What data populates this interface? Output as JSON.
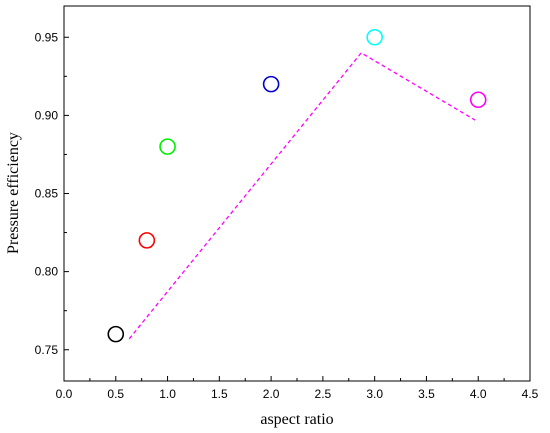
{
  "chart_data": {
    "type": "scatter",
    "title": "",
    "xlabel": "aspect ratio",
    "ylabel": "Pressure efficiency",
    "xlim": [
      0.0,
      4.5
    ],
    "ylim": [
      0.73,
      0.97
    ],
    "x_ticks": [
      "0.0",
      "0.5",
      "1.0",
      "1.5",
      "2.0",
      "2.5",
      "3.0",
      "3.5",
      "4.0",
      "4.5"
    ],
    "y_ticks": [
      "0.75",
      "0.80",
      "0.85",
      "0.90",
      "0.95"
    ],
    "grid": false,
    "legend": "none",
    "points": [
      {
        "x": 0.5,
        "y": 0.76,
        "color": "#000000"
      },
      {
        "x": 0.8,
        "y": 0.82,
        "color": "#ff0000"
      },
      {
        "x": 1.0,
        "y": 0.88,
        "color": "#00ee00"
      },
      {
        "x": 2.0,
        "y": 0.92,
        "color": "#0000cc"
      },
      {
        "x": 3.0,
        "y": 0.95,
        "color": "#00ffff"
      },
      {
        "x": 4.0,
        "y": 0.91,
        "color": "#ff00ff"
      }
    ],
    "dashed_line": {
      "color": "#ff00ff",
      "x": [
        0.63,
        2.87,
        3.97
      ],
      "y": [
        0.757,
        0.94,
        0.897
      ]
    }
  }
}
